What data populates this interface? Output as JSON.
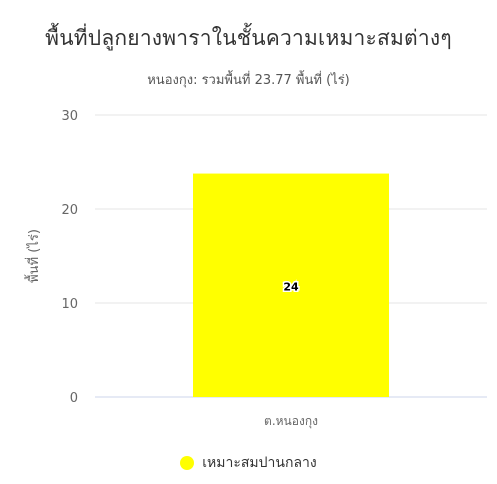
{
  "chart_data": {
    "type": "bar",
    "title": "พื้นที่ปลูกยางพาราในชั้นความเหมาะสมต่างๆ",
    "subtitle": "หนองกุง: รวมพื้นที่ 23.77 พื้นที่ (ไร่)",
    "xlabel": "",
    "ylabel": "พื้นที่ (ไร่)",
    "ylim": [
      0,
      30
    ],
    "yticks": [
      0,
      10,
      20,
      30
    ],
    "categories": [
      "ต.หนองกุง"
    ],
    "series": [
      {
        "name": "เหมาะสมปานกลาง",
        "values": [
          23.77
        ],
        "data_labels": [
          "24"
        ],
        "color": "#ffff00"
      }
    ],
    "grid": true,
    "legend_position": "bottom-center"
  },
  "colors": {
    "title": "#333333",
    "axis_text": "#666666",
    "grid": "#e6e6e6",
    "axis_line": "#ccd6eb"
  }
}
